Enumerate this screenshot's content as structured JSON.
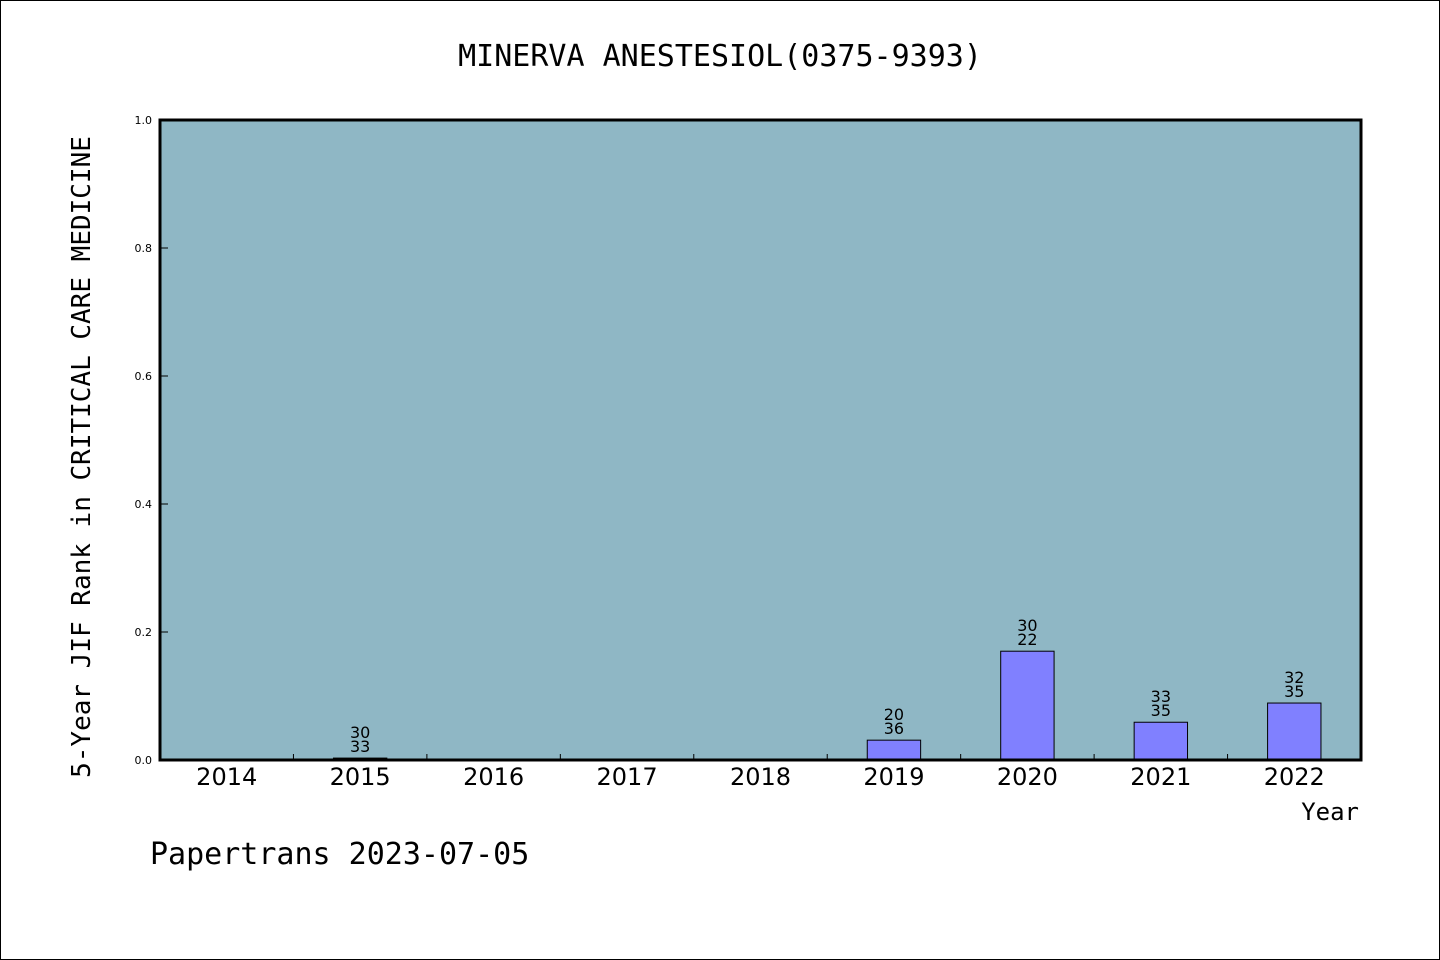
{
  "chart_data": {
    "type": "bar",
    "title": "MINERVA ANESTESIOL(0375-9393)",
    "ylabel": "5-Year JIF Rank in CRITICAL CARE MEDICINE",
    "xlabel": "Year",
    "ylim": [
      0,
      1.0
    ],
    "yticks": [
      "0.0",
      "0.2",
      "0.4",
      "0.6",
      "0.8",
      "1.0"
    ],
    "categories": [
      "2014",
      "2015",
      "2016",
      "2017",
      "2018",
      "2019",
      "2020",
      "2021",
      "2022"
    ],
    "values": [
      null,
      0.003,
      null,
      null,
      null,
      0.031,
      0.17,
      0.059,
      0.089
    ],
    "bar_labels": [
      null,
      [
        "30",
        "33"
      ],
      null,
      null,
      null,
      [
        "20",
        "36"
      ],
      [
        "30",
        "22"
      ],
      [
        "33",
        "35"
      ],
      [
        "32",
        "35"
      ]
    ],
    "grid": false,
    "colors": {
      "plot_background": "#8fb7c5",
      "bar_fill": "#8080ff",
      "bar_stroke": "#000000",
      "axis": "#000000"
    }
  },
  "footer": {
    "text": "Papertrans 2023-07-05"
  }
}
